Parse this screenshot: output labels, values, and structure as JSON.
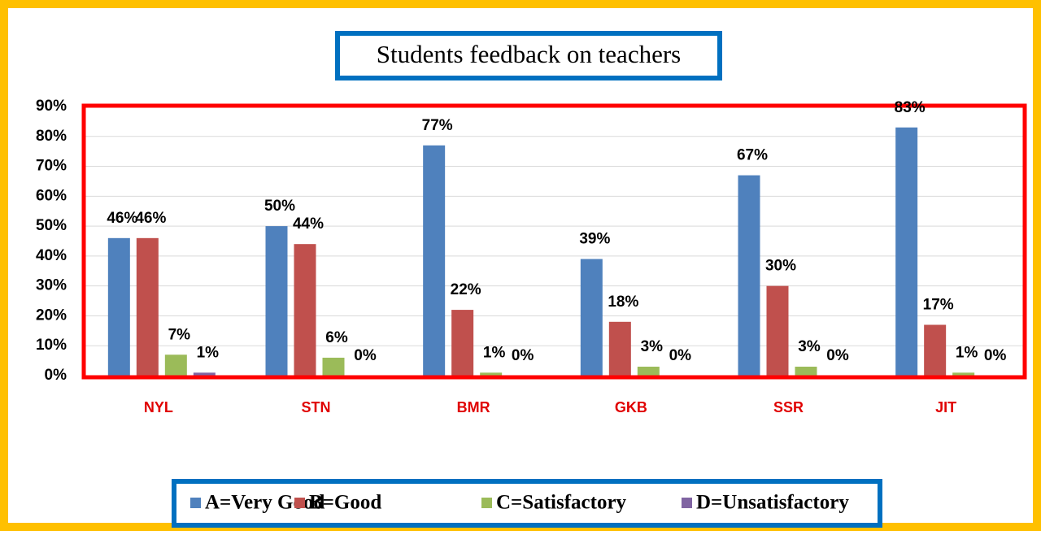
{
  "chart_data": {
    "type": "bar",
    "title": "Students feedback on teachers",
    "categories": [
      "NYL",
      "STN",
      "BMR",
      "GKB",
      "SSR",
      "JIT"
    ],
    "series": [
      {
        "name": "A=Very Good",
        "color": "#4f81bd",
        "values": [
          46,
          50,
          77,
          39,
          67,
          83
        ],
        "value_labels": [
          "46%",
          "50%",
          "77%",
          "39%",
          "67%",
          "83%"
        ]
      },
      {
        "name": "B=Good",
        "color": "#c0504d",
        "values": [
          46,
          44,
          22,
          18,
          30,
          17
        ],
        "value_labels": [
          "46%",
          "44%",
          "22%",
          "18%",
          "30%",
          "17%"
        ]
      },
      {
        "name": "C=Satisfactory",
        "color": "#9bbb59",
        "values": [
          7,
          6,
          1,
          3,
          3,
          1
        ],
        "value_labels": [
          "7%",
          "6%",
          "1%",
          "3%",
          "3%",
          "1%"
        ]
      },
      {
        "name": "D=Unsatisfactory",
        "color": "#8064a2",
        "values": [
          1,
          0,
          0,
          0,
          0,
          0
        ],
        "value_labels": [
          "1%",
          "0%",
          "0%",
          "0%",
          "0%",
          "0%"
        ]
      }
    ],
    "ylim": [
      0,
      90
    ],
    "yticks": [
      {
        "value": 0,
        "label": "0%"
      },
      {
        "value": 10,
        "label": "10%"
      },
      {
        "value": 20,
        "label": "20%"
      },
      {
        "value": 30,
        "label": "30%"
      },
      {
        "value": 40,
        "label": "40%"
      },
      {
        "value": 50,
        "label": "50%"
      },
      {
        "value": 60,
        "label": "60%"
      },
      {
        "value": 70,
        "label": "70%"
      },
      {
        "value": 80,
        "label": "80%"
      },
      {
        "value": 90,
        "label": "90%"
      }
    ],
    "grid": true,
    "legend": "bottom"
  }
}
